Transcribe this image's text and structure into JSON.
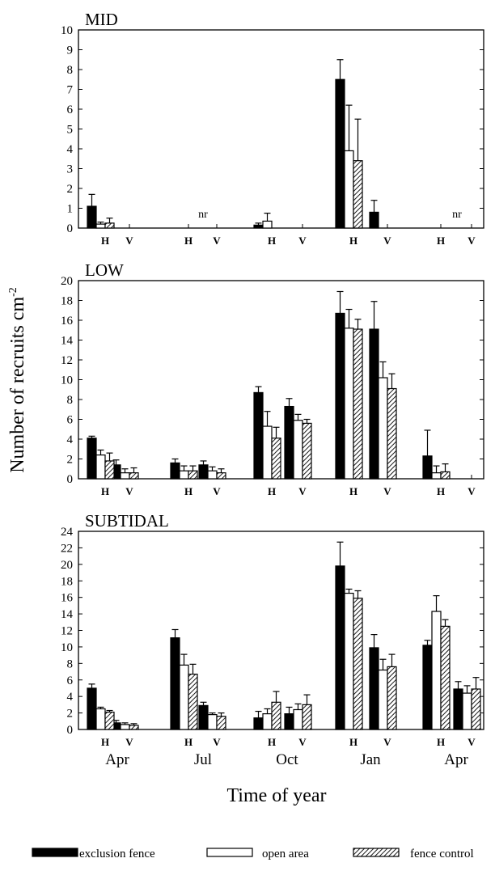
{
  "chart_data": {
    "type": "bar",
    "ylabel": "Number of recruits cm",
    "ylabel_superscript": "-2",
    "xlabel": "Time of year",
    "month_labels": [
      "Apr",
      "Jul",
      "Oct",
      "Jan",
      "Apr"
    ],
    "subgroup_labels": [
      "H",
      "V"
    ],
    "not_recorded_label": "nr",
    "legend": [
      {
        "name": "exclusion fence",
        "fill": "#000000"
      },
      {
        "name": "open area",
        "fill": "#ffffff"
      },
      {
        "name": "fence control",
        "fill": "hatch"
      }
    ],
    "panels": [
      {
        "title": "MID",
        "ylim": [
          0,
          10
        ],
        "yticks": [
          0,
          1,
          2,
          3,
          4,
          5,
          6,
          7,
          8,
          9,
          10
        ],
        "categories": [
          "Apr H",
          "Apr V",
          "Jul H",
          "Jul V",
          "Oct H",
          "Oct V",
          "Jan H",
          "Jan V",
          "Apr H",
          "Apr V"
        ],
        "not_recorded": [
          "Jul",
          "Apr"
        ],
        "series": [
          {
            "name": "exclusion fence",
            "values": [
              1.1,
              0,
              null,
              null,
              0.15,
              0,
              7.5,
              0.8,
              null,
              null
            ],
            "errors": [
              0.6,
              0,
              null,
              null,
              0.1,
              0,
              1.0,
              0.6,
              null,
              null
            ]
          },
          {
            "name": "open area",
            "values": [
              0.2,
              0,
              null,
              null,
              0.35,
              0,
              3.9,
              0,
              null,
              null
            ],
            "errors": [
              0.1,
              0,
              null,
              null,
              0.4,
              0,
              2.3,
              0,
              null,
              null
            ]
          },
          {
            "name": "fence control",
            "values": [
              0.25,
              0,
              null,
              null,
              0,
              0,
              3.4,
              0,
              null,
              null
            ],
            "errors": [
              0.25,
              0,
              null,
              null,
              0,
              0,
              2.1,
              0,
              null,
              null
            ]
          }
        ]
      },
      {
        "title": "LOW",
        "ylim": [
          0,
          20
        ],
        "yticks": [
          0,
          2,
          4,
          6,
          8,
          10,
          12,
          14,
          16,
          18,
          20
        ],
        "categories": [
          "Apr H",
          "Apr V",
          "Jul H",
          "Jul V",
          "Oct H",
          "Oct V",
          "Jan H",
          "Jan V",
          "Apr H",
          "Apr V"
        ],
        "series": [
          {
            "name": "exclusion fence",
            "values": [
              4.1,
              1.4,
              1.6,
              1.4,
              8.7,
              7.3,
              16.7,
              15.1,
              2.3,
              0
            ],
            "errors": [
              0.2,
              0.5,
              0.4,
              0.4,
              0.6,
              0.8,
              2.2,
              2.8,
              2.6,
              0
            ]
          },
          {
            "name": "open area",
            "values": [
              2.4,
              0.6,
              0.8,
              0.8,
              5.3,
              5.9,
              15.2,
              10.2,
              0.6,
              0
            ],
            "errors": [
              0.5,
              0.4,
              0.5,
              0.4,
              1.5,
              0.6,
              1.9,
              1.6,
              0.7,
              0
            ]
          },
          {
            "name": "fence control",
            "values": [
              1.8,
              0.6,
              0.8,
              0.6,
              4.1,
              5.6,
              15.1,
              9.1,
              0.7,
              0
            ],
            "errors": [
              0.8,
              0.5,
              0.5,
              0.4,
              1.1,
              0.4,
              1.0,
              1.5,
              0.8,
              0
            ]
          }
        ]
      },
      {
        "title": "SUBTIDAL",
        "ylim": [
          0,
          24
        ],
        "yticks": [
          0,
          2,
          4,
          6,
          8,
          10,
          12,
          14,
          16,
          18,
          20,
          22,
          24
        ],
        "categories": [
          "Apr H",
          "Apr V",
          "Jul H",
          "Jul V",
          "Oct H",
          "Oct V",
          "Jan H",
          "Jan V",
          "Apr H",
          "Apr V"
        ],
        "series": [
          {
            "name": "exclusion fence",
            "values": [
              5.0,
              0.8,
              11.1,
              2.9,
              1.4,
              1.9,
              19.8,
              9.9,
              10.2,
              4.9
            ],
            "errors": [
              0.5,
              0.3,
              1.0,
              0.4,
              0.8,
              0.8,
              2.9,
              1.6,
              0.6,
              0.9
            ]
          },
          {
            "name": "open area",
            "values": [
              2.5,
              0.6,
              7.8,
              1.8,
              1.9,
              2.4,
              16.5,
              7.2,
              14.3,
              4.4
            ],
            "errors": [
              0.2,
              0.2,
              1.3,
              0.2,
              0.6,
              0.7,
              0.5,
              1.3,
              1.9,
              0.9
            ]
          },
          {
            "name": "fence control",
            "values": [
              2.1,
              0.5,
              6.7,
              1.6,
              3.3,
              3.0,
              15.9,
              7.6,
              12.5,
              4.9
            ],
            "errors": [
              0.2,
              0.2,
              1.2,
              0.4,
              1.3,
              1.2,
              0.9,
              1.5,
              0.8,
              1.4
            ]
          }
        ]
      }
    ]
  }
}
